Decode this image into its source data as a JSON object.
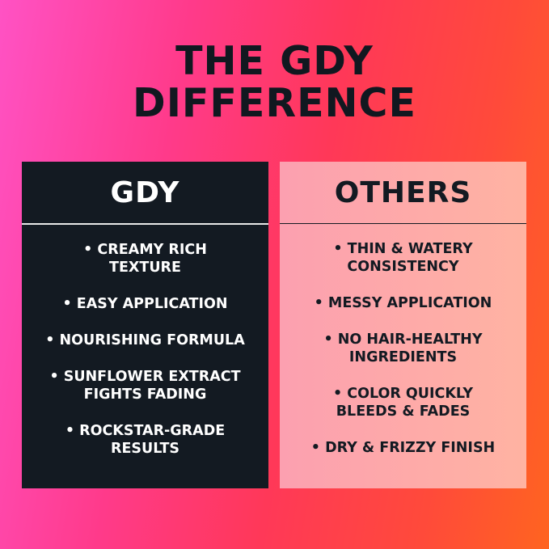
{
  "title": "THE GDY\nDIFFERENCE",
  "colors": {
    "dark_panel": "#131a22",
    "light_panel": "#fca0b0",
    "bg_left": "#ff52c4",
    "bg_right": "#ff6420"
  },
  "left": {
    "heading": "GDY",
    "items": [
      "• CREAMY RICH\nTEXTURE",
      "• EASY APPLICATION",
      "• NOURISHING FORMULA",
      "• SUNFLOWER EXTRACT\nFIGHTS FADING",
      "• ROCKSTAR-GRADE\nRESULTS"
    ]
  },
  "right": {
    "heading": "OTHERS",
    "items": [
      "• THIN & WATERY\nCONSISTENCY",
      "• MESSY APPLICATION",
      "• NO HAIR-HEALTHY\nINGREDIENTS",
      "• COLOR QUICKLY\nBLEEDS & FADES",
      "• DRY & FRIZZY FINISH"
    ]
  }
}
